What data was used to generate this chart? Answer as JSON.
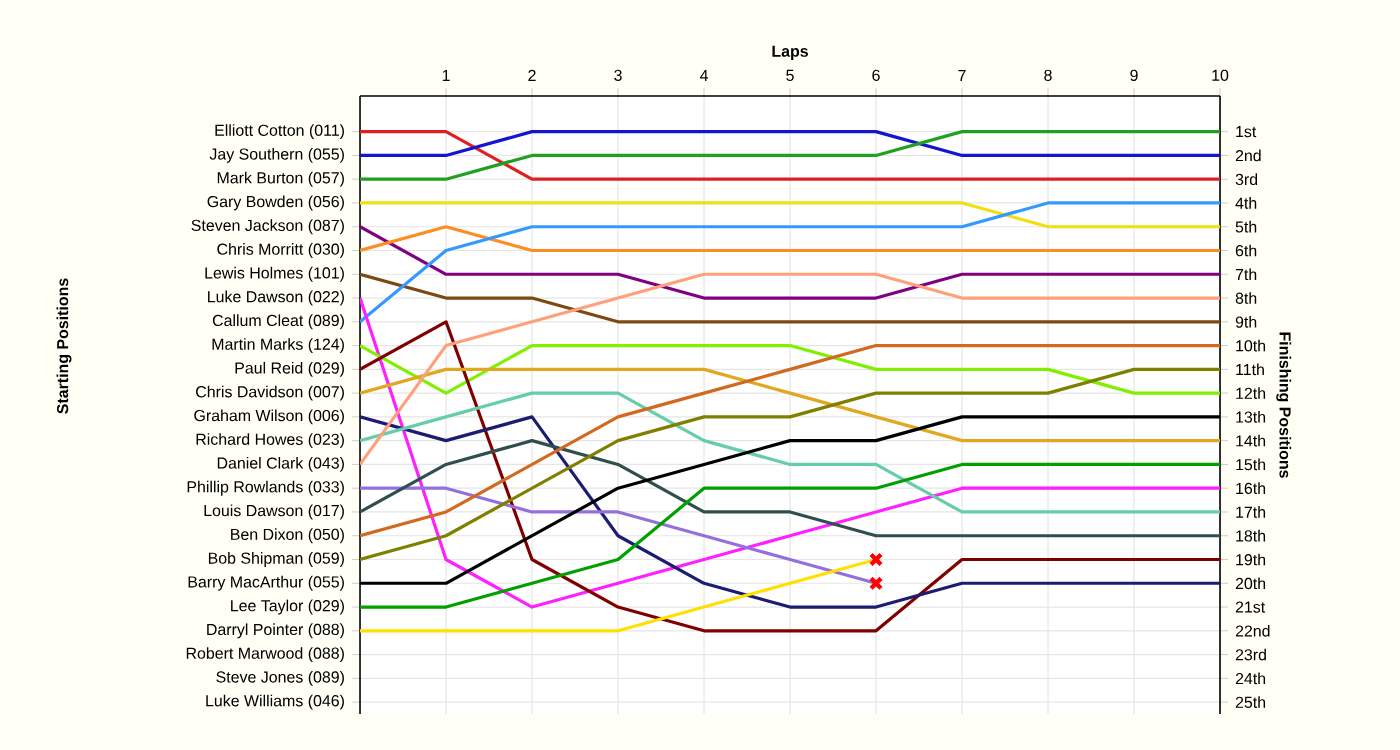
{
  "chart_data": {
    "type": "line",
    "xlabel": "Laps",
    "annotations": [
      "Starting Positions"
    ],
    "y2label": "Finishing Positions",
    "grid": true,
    "x": [
      0,
      1,
      2,
      3,
      4,
      5,
      6,
      7,
      8,
      9,
      10
    ],
    "xlim": [
      0,
      10
    ],
    "xticks": [
      1,
      2,
      3,
      4,
      5,
      6,
      7,
      8,
      9,
      10
    ],
    "y_categories": [
      "Elliott Cotton (011)",
      "Jay Southern (055)",
      "Mark Burton (057)",
      "Gary Bowden (056)",
      "Steven Jackson (087)",
      "Chris Morritt (030)",
      "Lewis Holmes (101)",
      "Luke Dawson (022)",
      "Callum Cleat (089)",
      "Martin Marks (124)",
      "Paul Reid (029)",
      "Chris Davidson (007)",
      "Graham Wilson (006)",
      "Richard Howes (023)",
      "Daniel Clark (043)",
      "Phillip Rowlands (033)",
      "Louis Dawson (017)",
      "Ben Dixon (050)",
      "Bob Shipman (059)",
      "Barry MacArthur (055)",
      "Lee Taylor (029)",
      "Darryl Pointer (088)",
      "Robert Marwood (088)",
      "Steve Jones (089)",
      "Luke Williams (046)"
    ],
    "y2lim": [
      25.5,
      -0.5
    ],
    "y2ticks": [
      {
        "value": 1,
        "label": "1st"
      },
      {
        "value": 2,
        "label": "2nd"
      },
      {
        "value": 3,
        "label": "3rd"
      },
      {
        "value": 4,
        "label": "4th"
      },
      {
        "value": 5,
        "label": "5th"
      },
      {
        "value": 6,
        "label": "6th"
      },
      {
        "value": 7,
        "label": "7th"
      },
      {
        "value": 8,
        "label": "8th"
      },
      {
        "value": 9,
        "label": "9th"
      },
      {
        "value": 10,
        "label": "10th"
      },
      {
        "value": 11,
        "label": "11th"
      },
      {
        "value": 12,
        "label": "12th"
      },
      {
        "value": 13,
        "label": "13th"
      },
      {
        "value": 14,
        "label": "14th"
      },
      {
        "value": 15,
        "label": "15th"
      },
      {
        "value": 16,
        "label": "16th"
      },
      {
        "value": 17,
        "label": "17th"
      },
      {
        "value": 18,
        "label": "18th"
      },
      {
        "value": 19,
        "label": "19th"
      },
      {
        "value": 20,
        "label": "20th"
      },
      {
        "value": 21,
        "label": "21st"
      },
      {
        "value": 22,
        "label": "22nd"
      },
      {
        "value": 23,
        "label": "23rd"
      },
      {
        "value": 24,
        "label": "24th"
      },
      {
        "value": 25,
        "label": "25th"
      }
    ],
    "series": [
      {
        "axis": "y2",
        "color": "#e02020",
        "values": [
          1,
          1,
          3,
          3,
          3,
          3,
          3,
          3,
          3,
          3,
          3
        ]
      },
      {
        "axis": "y2",
        "color": "#1515d0",
        "values": [
          2,
          2,
          1,
          1,
          1,
          1,
          1,
          2,
          2,
          2,
          2
        ]
      },
      {
        "axis": "y2",
        "color": "#20a020",
        "values": [
          3,
          3,
          2,
          2,
          2,
          2,
          2,
          1,
          1,
          1,
          1
        ]
      },
      {
        "axis": "y2",
        "color": "#f0e010",
        "values": [
          4,
          4,
          4,
          4,
          4,
          4,
          4,
          4,
          5,
          5,
          5
        ]
      },
      {
        "axis": "y2",
        "color": "#800080",
        "values": [
          5,
          7,
          7,
          7,
          8,
          8,
          8,
          7,
          7,
          7,
          7
        ]
      },
      {
        "axis": "y2",
        "color": "#ff8c20",
        "values": [
          6,
          5,
          6,
          6,
          6,
          6,
          6,
          6,
          6,
          6,
          6
        ]
      },
      {
        "axis": "y2",
        "color": "#7b4a12",
        "values": [
          7,
          8,
          8,
          9,
          9,
          9,
          9,
          9,
          9,
          9,
          9
        ]
      },
      {
        "axis": "y2",
        "color": "#3399ff",
        "values": [
          9,
          6,
          5,
          5,
          5,
          5,
          5,
          5,
          4,
          4,
          4
        ]
      },
      {
        "axis": "y2",
        "color": "#ff20ff",
        "values": [
          8,
          19,
          21,
          20,
          19,
          18,
          17,
          16,
          16,
          16,
          16
        ]
      },
      {
        "axis": "y2",
        "color": "#80f000",
        "values": [
          10,
          12,
          10,
          10,
          10,
          10,
          11,
          11,
          11,
          12,
          12
        ]
      },
      {
        "axis": "y2",
        "color": "#800000",
        "values": [
          11,
          9,
          19,
          21,
          22,
          22,
          22,
          19,
          19,
          19,
          19
        ]
      },
      {
        "axis": "y2",
        "color": "#e0a820",
        "values": [
          12,
          11,
          11,
          11,
          11,
          12,
          13,
          14,
          14,
          14,
          14
        ]
      },
      {
        "axis": "y2",
        "color": "#1c1c70",
        "values": [
          13,
          14,
          13,
          18,
          20,
          21,
          21,
          20,
          20,
          20,
          20
        ]
      },
      {
        "axis": "y2",
        "color": "#66cdaa",
        "values": [
          14,
          13,
          12,
          12,
          14,
          15,
          15,
          17,
          17,
          17,
          17
        ]
      },
      {
        "axis": "y2",
        "color": "#ffa07a",
        "values": [
          15,
          10,
          9,
          8,
          7,
          7,
          7,
          8,
          8,
          8,
          8
        ]
      },
      {
        "axis": "y2",
        "color": "#9370db",
        "values": [
          16,
          16,
          17,
          17,
          18,
          19,
          20,
          null,
          null,
          null,
          null
        ]
      },
      {
        "axis": "y2",
        "color": "#2f4f4f",
        "values": [
          17,
          15,
          14,
          15,
          17,
          17,
          18,
          18,
          18,
          18,
          18
        ]
      },
      {
        "axis": "y2",
        "color": "#d2691e",
        "values": [
          18,
          17,
          15,
          13,
          12,
          11,
          10,
          10,
          10,
          10,
          10
        ]
      },
      {
        "axis": "y2",
        "color": "#808000",
        "values": [
          19,
          18,
          16,
          14,
          13,
          13,
          12,
          12,
          12,
          11,
          11
        ]
      },
      {
        "axis": "y2",
        "color": "#000000",
        "values": [
          20,
          20,
          18,
          16,
          15,
          14,
          14,
          13,
          13,
          13,
          13
        ]
      },
      {
        "axis": "y2",
        "color": "#00a000",
        "values": [
          21,
          21,
          20,
          19,
          16,
          16,
          16,
          15,
          15,
          15,
          15
        ]
      },
      {
        "axis": "y2",
        "color": "#ffe000",
        "values": [
          22,
          22,
          22,
          22,
          21,
          20,
          19,
          null,
          null,
          null,
          null
        ]
      },
      {
        "axis": "y2",
        "type": "scatter",
        "marker": "cross",
        "color": "#ff0000",
        "x": [
          6,
          6
        ],
        "values": [
          19,
          20
        ]
      }
    ]
  }
}
